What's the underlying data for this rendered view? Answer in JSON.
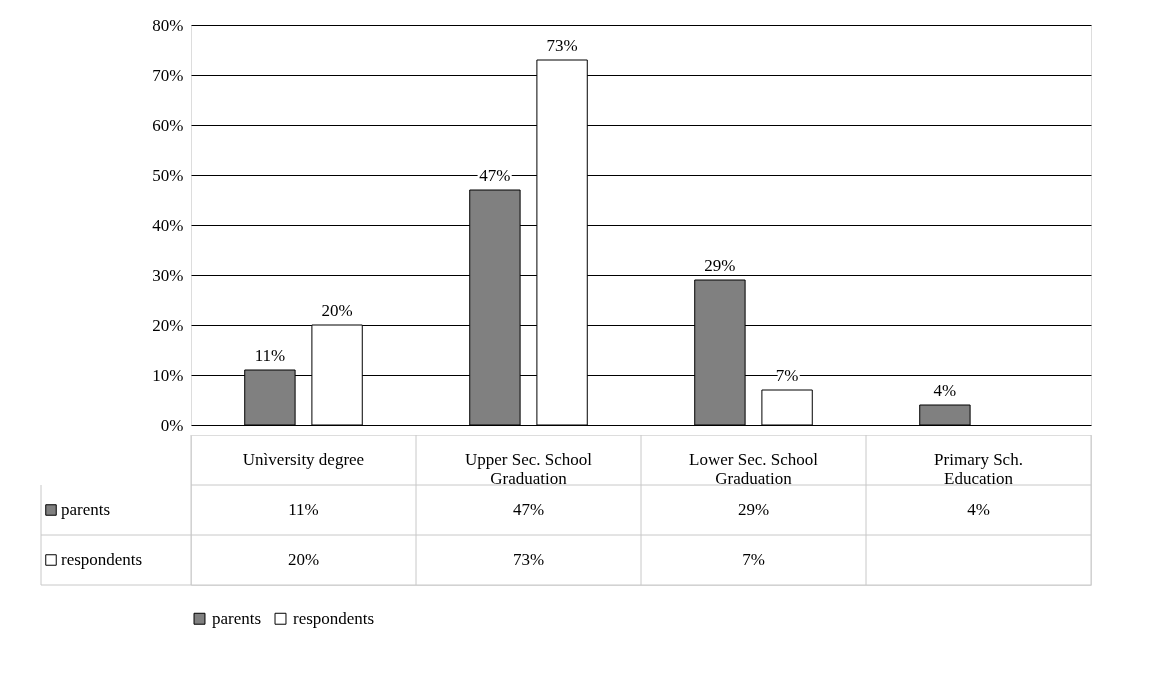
{
  "chart_data": {
    "type": "bar",
    "categories": [
      "Unìversity degree",
      "Upper Sec. School Graduation",
      "Lower Sec. School Graduation",
      "Primary Sch. Education"
    ],
    "series": [
      {
        "name": "parents",
        "color": "#808080",
        "values": [
          11,
          47,
          29,
          4
        ],
        "value_labels": [
          "11%",
          "47%",
          "29%",
          "4%"
        ]
      },
      {
        "name": "respondents",
        "color": "#ffffff",
        "values": [
          20,
          73,
          7,
          null
        ],
        "value_labels": [
          "20%",
          "73%",
          "7%",
          null
        ]
      }
    ],
    "ylim": [
      0,
      80
    ],
    "yticks": [
      {
        "value": 0,
        "label": "0%"
      },
      {
        "value": 10,
        "label": "10%"
      },
      {
        "value": 20,
        "label": "20%"
      },
      {
        "value": 30,
        "label": "30%"
      },
      {
        "value": 40,
        "label": "40%"
      },
      {
        "value": 50,
        "label": "50%"
      },
      {
        "value": 60,
        "label": "60%"
      },
      {
        "value": 70,
        "label": "70%"
      },
      {
        "value": 80,
        "label": "80%"
      }
    ],
    "grid": "y",
    "legend": "bottom"
  }
}
